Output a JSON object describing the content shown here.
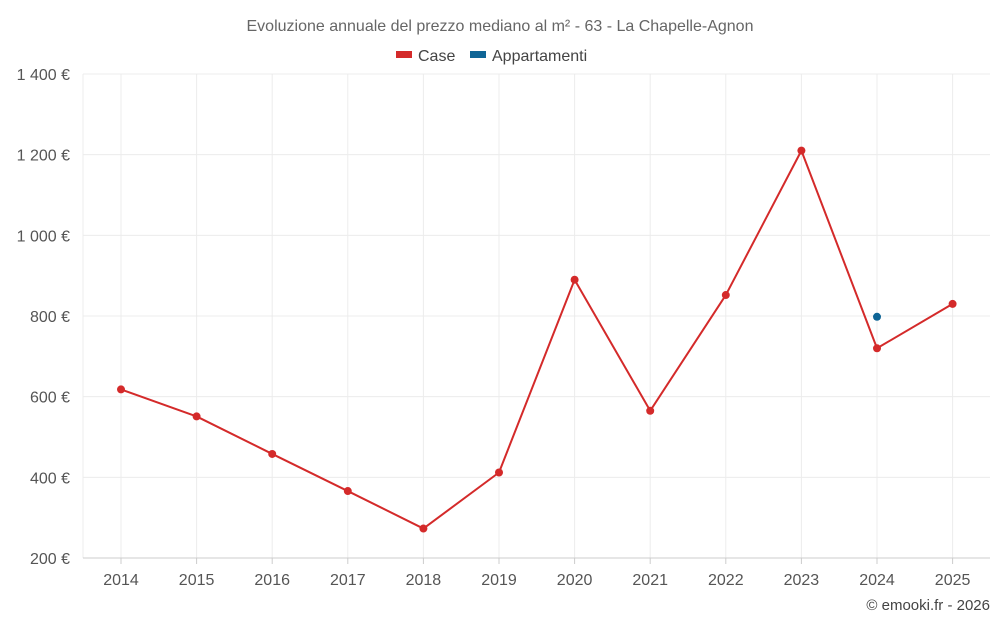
{
  "chart_data": {
    "type": "line",
    "title": "Evoluzione annuale del prezzo mediano al m² - 63 - La Chapelle-Agnon",
    "xlabel": "",
    "ylabel": "",
    "x": [
      "2014",
      "2015",
      "2016",
      "2017",
      "2018",
      "2019",
      "2020",
      "2021",
      "2022",
      "2023",
      "2024",
      "2025"
    ],
    "ylim": [
      200,
      1400
    ],
    "yticks": [
      200,
      400,
      600,
      800,
      1000,
      1200,
      1400
    ],
    "ytick_labels": [
      "200 €",
      "400 €",
      "600 €",
      "800 €",
      "1 000 €",
      "1 200 €",
      "1 400 €"
    ],
    "grid": true,
    "legend": "top-center",
    "series": [
      {
        "name": "Case",
        "color": "#d42a2a",
        "values": [
          618,
          551,
          458,
          366,
          273,
          412,
          890,
          565,
          852,
          1210,
          720,
          830
        ]
      },
      {
        "name": "Appartamenti",
        "color": "#0f6596",
        "values": [
          null,
          null,
          null,
          null,
          null,
          null,
          null,
          null,
          null,
          null,
          798,
          null
        ]
      }
    ]
  },
  "credit": "© emooki.fr - 2026"
}
